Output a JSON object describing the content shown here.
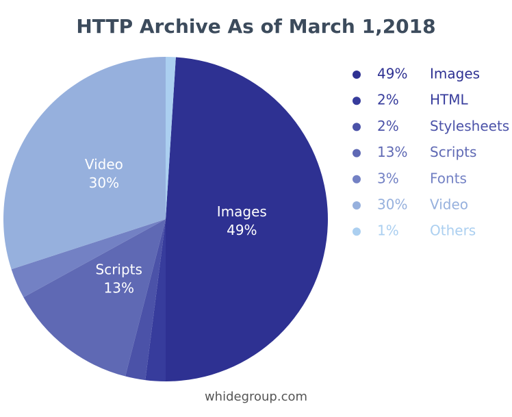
{
  "chart_data": {
    "type": "pie",
    "title": "HTTP Archive As of March 1,2018",
    "categories": [
      "Images",
      "HTML",
      "Stylesheets",
      "Scripts",
      "Fonts",
      "Video",
      "Others"
    ],
    "values": [
      49,
      2,
      2,
      13,
      3,
      30,
      1
    ],
    "value_labels": [
      "49%",
      "2%",
      "2%",
      "13%",
      "3%",
      "30%",
      "1%"
    ],
    "colors": [
      "#2e3192",
      "#373c9c",
      "#4b52a8",
      "#5f69b4",
      "#7381c4",
      "#96b0dd",
      "#abcff0"
    ],
    "legend": "right",
    "source": "whidegroup.com"
  }
}
